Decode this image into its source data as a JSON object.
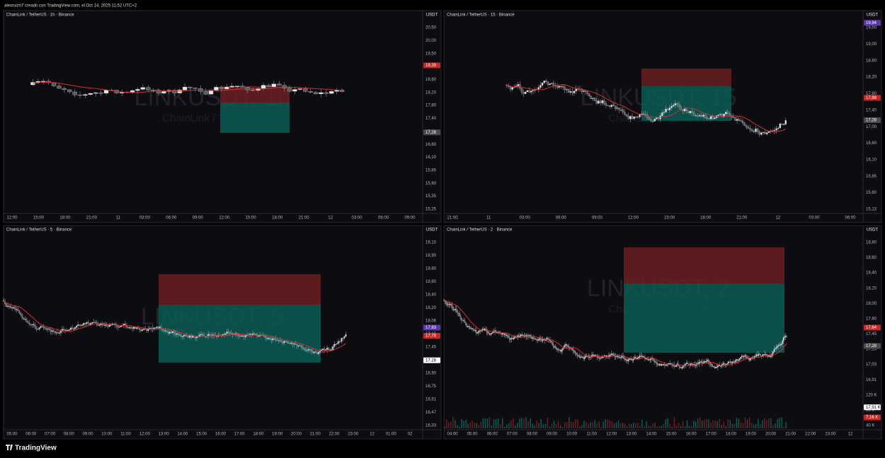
{
  "header": {
    "caption": "alexruizn7 creado con TradingView.com, el Oct 14, 2025 11:52 UTC+2"
  },
  "panels": [
    {
      "title": "ChainLink / TetherUS · 1h · Binance",
      "currency": "USDT",
      "watermark_symbol": "LINKUSDT, 1h",
      "watermark_name": "ChainLink / TetherUS",
      "price_labels": [
        "20,50",
        "20,00",
        "19,50",
        "19,00",
        "18,60",
        "18,20",
        "17,80",
        "17,40",
        "17,00",
        "16,60",
        "16,10",
        "15,85",
        "15,60",
        "15,35",
        "15,25"
      ],
      "price_tags": [
        {
          "text": "19,39",
          "color": "#c62828"
        },
        {
          "text": "17,28",
          "color": "#4a4a52"
        }
      ],
      "time_labels": [
        "12:00",
        "15:00",
        "18:00",
        "21:00",
        "11",
        "03:00",
        "06:00",
        "09:00",
        "12:00",
        "15:00",
        "18:00",
        "21:00",
        "12",
        "03:00",
        "06:00",
        "09:00"
      ]
    },
    {
      "title": "ChainLink / TetherUS · 15 · Binance",
      "currency": "USDT",
      "watermark_symbol": "LINKUSDT, 15",
      "watermark_name": "ChainLink / TetherUS",
      "price_labels": [
        "19,50",
        "19,00",
        "18,60",
        "18,20",
        "17,80",
        "17,40",
        "17,00",
        "16,60",
        "16,10",
        "15,85",
        "15,60",
        "15,13"
      ],
      "price_tags": [
        {
          "text": "19,94",
          "color": "#5e35b1"
        },
        {
          "text": "17,88",
          "color": "#c62828"
        },
        {
          "text": "17,28",
          "color": "#4a4a52"
        }
      ],
      "time_labels": [
        "21:00",
        "11",
        "03:00",
        "06:00",
        "09:00",
        "12:00",
        "15:00",
        "18:00",
        "21:00",
        "12",
        "03:00",
        "06:00"
      ]
    },
    {
      "title": "ChainLink / TetherUS · 5 · Binance",
      "currency": "USDT",
      "watermark_symbol": "LINKUSDT, 5",
      "watermark_name": "ChainLink / TetherUS",
      "price_labels": [
        "19,10",
        "18,90",
        "18,80",
        "18,60",
        "18,40",
        "18,20",
        "18,06",
        "17,60",
        "17,45",
        "17,15",
        "16,90",
        "16,75",
        "16,61",
        "16,47",
        "16,33"
      ],
      "price_tags": [
        {
          "text": "17,83",
          "color": "#5e35b1"
        },
        {
          "text": "17,76",
          "color": "#c62828"
        },
        {
          "text": "17,28",
          "color": "#ffffff"
        }
      ],
      "time_labels": [
        "05:00",
        "06:00",
        "07:00",
        "08:00",
        "09:00",
        "10:00",
        "11:00",
        "12:00",
        "13:00",
        "14:00",
        "15:00",
        "16:00",
        "17:00",
        "18:00",
        "19:00",
        "20:00",
        "21:00",
        "22:00",
        "23:00",
        "12",
        "01:00",
        "02"
      ]
    },
    {
      "title": "ChainLink / TetherUS · 2 · Binance",
      "currency": "USDT",
      "watermark_symbol": "LINKUSDT, 2",
      "watermark_name": "ChainLink / TetherUS",
      "price_labels": [
        "18,80",
        "18,60",
        "18,40",
        "18,20",
        "18,00",
        "17,80",
        "17,45",
        "17,15",
        "17,03",
        "16,91",
        "120 K",
        "80 K",
        "40 K"
      ],
      "price_tags": [
        {
          "text": "17,64",
          "color": "#c62828"
        },
        {
          "text": "17,28",
          "color": "#4a4a52"
        },
        {
          "text": "17,91 K",
          "color": "#ffffff"
        },
        {
          "text": "7,16 K",
          "color": "#c62828"
        }
      ],
      "time_labels": [
        "04:00",
        "05:00",
        "06:00",
        "07:00",
        "08:00",
        "09:00",
        "10:00",
        "11:00",
        "12:00",
        "13:00",
        "14:00",
        "15:00",
        "16:00",
        "17:00",
        "18:00",
        "19:00",
        "20:00",
        "21:00",
        "22:00",
        "23:00",
        "12"
      ]
    }
  ],
  "footer": {
    "logo": "TradingView"
  }
}
